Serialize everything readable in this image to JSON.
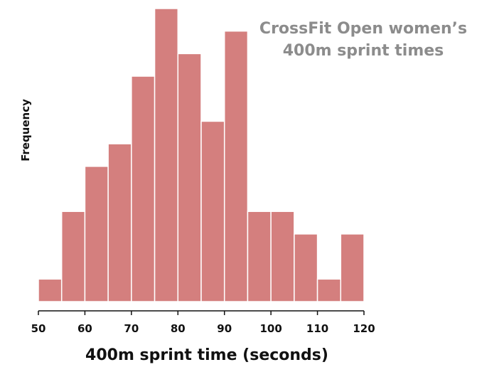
{
  "chart_data": {
    "type": "bar",
    "title_lines": [
      "CrossFit Open women’s",
      "400m sprint times"
    ],
    "xlabel": "400m sprint time (seconds)",
    "ylabel": "Frequency",
    "xlim": [
      50,
      120
    ],
    "xticks": [
      50,
      60,
      70,
      80,
      90,
      100,
      110,
      120
    ],
    "bin_width": 5,
    "ylim": [
      0,
      13
    ],
    "y_ticks_shown": false,
    "bins": [
      {
        "start": 50,
        "end": 55,
        "value": 1
      },
      {
        "start": 55,
        "end": 60,
        "value": 4
      },
      {
        "start": 60,
        "end": 65,
        "value": 6
      },
      {
        "start": 65,
        "end": 70,
        "value": 7
      },
      {
        "start": 70,
        "end": 75,
        "value": 10
      },
      {
        "start": 75,
        "end": 80,
        "value": 13
      },
      {
        "start": 80,
        "end": 85,
        "value": 11
      },
      {
        "start": 85,
        "end": 90,
        "value": 8
      },
      {
        "start": 90,
        "end": 95,
        "value": 12
      },
      {
        "start": 95,
        "end": 100,
        "value": 4
      },
      {
        "start": 100,
        "end": 105,
        "value": 4
      },
      {
        "start": 105,
        "end": 110,
        "value": 3
      },
      {
        "start": 110,
        "end": 115,
        "value": 1
      },
      {
        "start": 115,
        "end": 120,
        "value": 3
      }
    ],
    "bar_color": "#d47f7e",
    "bar_edge_color": "#ffffff",
    "title_color": "#8c8c8c",
    "axis_color": "#111111",
    "grid": false
  }
}
